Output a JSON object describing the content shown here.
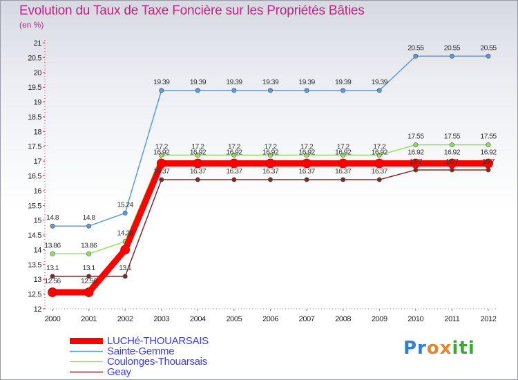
{
  "chart_data": {
    "type": "line",
    "title": "Evolution du Taux de Taxe Foncière sur les Propriétés Bâties",
    "ylabel": "(en %)",
    "xlabel": "",
    "ylim": [
      12,
      21
    ],
    "ytick_step": 0.5,
    "categories": [
      "2000",
      "2001",
      "2002",
      "2003",
      "2004",
      "2005",
      "2006",
      "2007",
      "2008",
      "2009",
      "2010",
      "2011",
      "2012"
    ],
    "series": [
      {
        "name": "LUCHé-THOUARSAIS",
        "color": "#ff0000",
        "values": [
          12.56,
          12.56,
          14,
          16.92,
          16.92,
          16.92,
          16.92,
          16.92,
          16.92,
          16.92,
          16.92,
          16.92,
          16.92
        ],
        "labels": [
          "12.56",
          "12.56",
          "",
          "16.92",
          "16.92",
          "16.92",
          "16.92",
          "16.92",
          "16.92",
          "16.92",
          "16.92",
          "16.92",
          "16.92"
        ]
      },
      {
        "name": "Sainte-Gemme",
        "color": "#5a9ad8",
        "values": [
          14.8,
          14.8,
          15.24,
          19.39,
          19.39,
          19.39,
          19.39,
          19.39,
          19.39,
          19.39,
          20.55,
          20.55,
          20.55
        ],
        "labels": [
          "14.8",
          "14.8",
          "15.24",
          "19.39",
          "19.39",
          "19.39",
          "19.39",
          "19.39",
          "19.39",
          "19.39",
          "20.55",
          "20.55",
          "20.55"
        ]
      },
      {
        "name": "Coulonges-Thouarsais",
        "color": "#8ee05a",
        "values": [
          13.86,
          13.86,
          14.28,
          17.2,
          17.2,
          17.2,
          17.2,
          17.2,
          17.2,
          17.2,
          17.55,
          17.55,
          17.55
        ],
        "labels": [
          "13.86",
          "13.86",
          "14.28",
          "17.2",
          "17.2",
          "17.2",
          "17.2",
          "17.2",
          "17.2",
          "17.2",
          "17.55",
          "17.55",
          "17.55"
        ]
      },
      {
        "name": "Geay",
        "color": "#7a2a2a",
        "values": [
          13.1,
          13.1,
          13.1,
          16.37,
          16.37,
          16.37,
          16.37,
          16.37,
          16.37,
          16.37,
          16.7,
          16.7,
          16.7
        ],
        "labels": [
          "13.1",
          "13.1",
          "13.1",
          "16.37",
          "16.37",
          "16.37",
          "16.37",
          "16.37",
          "16.37",
          "16.37",
          "16.7",
          "16.7",
          "16.7"
        ]
      }
    ],
    "grid": false,
    "legend": "bottom-left"
  },
  "logo": {
    "text": [
      "Pr",
      "o",
      "x",
      "iti"
    ]
  }
}
